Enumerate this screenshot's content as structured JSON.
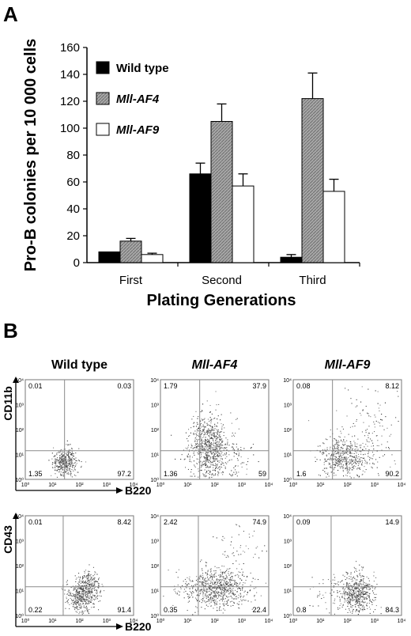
{
  "panel_a_label": "A",
  "panel_b_label": "B",
  "chart_data": [
    {
      "type": "bar",
      "title": "",
      "ylabel": "Pro-B colonies per 10 000 cells",
      "xlabel": "Plating Generations",
      "categories": [
        "First",
        "Second",
        "Third"
      ],
      "ylim": [
        0,
        160
      ],
      "yticks": [
        0,
        20,
        40,
        60,
        80,
        100,
        120,
        140,
        160
      ],
      "legend_position": "top-left",
      "series": [
        {
          "name": "Wild type",
          "values": [
            8,
            66,
            4
          ],
          "errors": [
            0,
            8,
            2
          ],
          "color": "#000000",
          "pattern": "solid"
        },
        {
          "name": "Mll-AF4",
          "values": [
            16,
            105,
            122
          ],
          "errors": [
            2,
            13,
            19
          ],
          "color": "#9a9a9a",
          "pattern": "hatched"
        },
        {
          "name": "Mll-AF9",
          "values": [
            6,
            57,
            53
          ],
          "errors": [
            1,
            9,
            9
          ],
          "color": "#ffffff",
          "pattern": "open"
        }
      ]
    },
    {
      "type": "scatter",
      "subtype": "flow-cytometry-grid",
      "row_y_labels": [
        "CD11b",
        "CD43"
      ],
      "x_label": "B220",
      "tick_labels": [
        "10⁰",
        "10¹",
        "10²",
        "10³",
        "10⁴"
      ],
      "columns": [
        "Wild type",
        "Mll-AF4",
        "Mll-AF9"
      ],
      "plots": [
        {
          "row": 0,
          "col": 0,
          "title": "Wild type",
          "quadrants": {
            "ul": "0.01",
            "ur": "0.03",
            "ll": "1.35",
            "lr": "97.2"
          }
        },
        {
          "row": 0,
          "col": 1,
          "title": "Mll-AF4",
          "quadrants": {
            "ul": "1.79",
            "ur": "37.9",
            "ll": "1.36",
            "lr": "59"
          }
        },
        {
          "row": 0,
          "col": 2,
          "title": "Mll-AF9",
          "quadrants": {
            "ul": "0.08",
            "ur": "8.12",
            "ll": "1.6",
            "lr": "90.2"
          }
        },
        {
          "row": 1,
          "col": 0,
          "title": "",
          "quadrants": {
            "ul": "0.01",
            "ur": "8.42",
            "ll": "0.22",
            "lr": "91.4"
          }
        },
        {
          "row": 1,
          "col": 1,
          "title": "",
          "quadrants": {
            "ul": "2.42",
            "ur": "74.9",
            "ll": "0.35",
            "lr": "22.4"
          }
        },
        {
          "row": 1,
          "col": 2,
          "title": "",
          "quadrants": {
            "ul": "0.09",
            "ur": "14.9",
            "ll": "0.8",
            "lr": "84.3"
          }
        }
      ]
    }
  ]
}
